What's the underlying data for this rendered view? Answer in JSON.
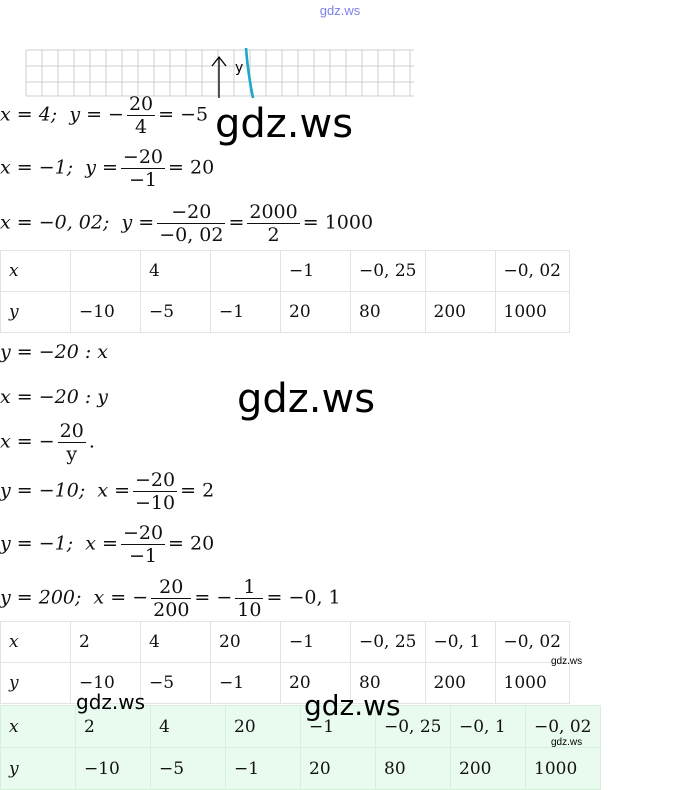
{
  "watermark": {
    "site": "gdz.ws"
  },
  "graph": {
    "axis_label": "y"
  },
  "eq1": {
    "lhs": "x = 4;",
    "y": "y = −",
    "num": "20",
    "den": "4",
    "res": "= −5"
  },
  "eq2": {
    "lhs": "x = −1;",
    "y": "y =",
    "num": "−20",
    "den": "−1",
    "res": "= 20"
  },
  "eq3": {
    "lhs": "x = −0, 02;",
    "y": "y =",
    "num": "−20",
    "den": "−0, 02",
    "eqs": "=",
    "num2": "2000",
    "den2": "2",
    "res": "= 1000"
  },
  "table1": {
    "x": [
      "x",
      "",
      "4",
      "",
      "−1",
      "−0, 25",
      "",
      "−0, 02"
    ],
    "y": [
      "y",
      "−10",
      "−5",
      "−1",
      "20",
      "80",
      "200",
      "1000"
    ]
  },
  "line1": "y = −20  :  x",
  "line2": "x = −20  :  y",
  "eq4": {
    "lhs": "x = −",
    "num": "20",
    "den": "y",
    "res": "."
  },
  "eq5": {
    "lhs": "y = −10;",
    "x": "x =",
    "num": "−20",
    "den": "−10",
    "res": "= 2"
  },
  "eq6": {
    "lhs": "y = −1;",
    "x": "x =",
    "num": "−20",
    "den": "−1",
    "res": "= 20"
  },
  "eq7": {
    "lhs": "y = 200;",
    "x": "x = −",
    "num": "20",
    "den": "200",
    "eqs": "= −",
    "num2": "1",
    "den2": "10",
    "res": "= −0, 1"
  },
  "table2": {
    "x": [
      "x",
      "2",
      "4",
      "20",
      "−1",
      "−0, 25",
      "−0, 1",
      "−0, 02"
    ],
    "y": [
      "y",
      "−10",
      "−5",
      "−1",
      "20",
      "80",
      "200",
      "1000"
    ]
  },
  "table3": {
    "x": [
      "x",
      "2",
      "4",
      "20",
      "−1",
      "−0, 25",
      "−0, 1",
      "−0, 02"
    ],
    "y": [
      "y",
      "−10",
      "−5",
      "−1",
      "20",
      "80",
      "200",
      "1000"
    ]
  }
}
